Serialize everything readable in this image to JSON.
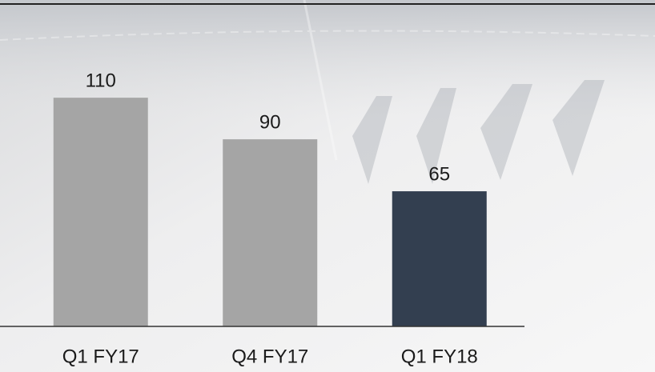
{
  "chart_data": {
    "type": "bar",
    "categories": [
      "Q1 FY17",
      "Q4 FY17",
      "Q1 FY18"
    ],
    "values": [
      110,
      90,
      65
    ],
    "colors": [
      "#a5a5a5",
      "#a5a5a5",
      "#333f50"
    ],
    "ylim": [
      0,
      157
    ]
  }
}
